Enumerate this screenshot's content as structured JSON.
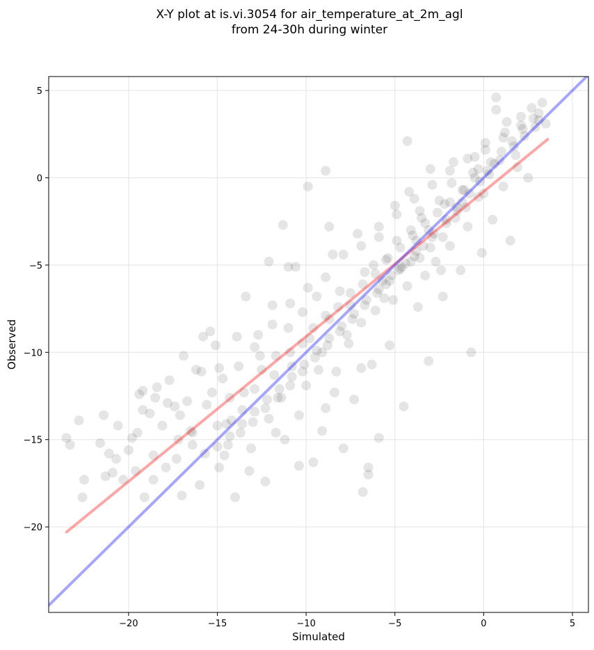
{
  "chart_data": {
    "type": "scatter",
    "title": "X-Y plot at is.vi.3054 for air_temperature_at_2m_agl",
    "subtitle": "from 24-30h during winter",
    "xlabel": "Simulated",
    "ylabel": "Observed",
    "xlim": [
      -24.5,
      5.9
    ],
    "ylim": [
      -24.9,
      5.8
    ],
    "xticks": [
      -20,
      -15,
      -10,
      -5,
      0,
      5
    ],
    "yticks": [
      -20,
      -15,
      -10,
      -5,
      0,
      5
    ],
    "xtick_labels": [
      "−20",
      "−15",
      "−10",
      "−5",
      "0",
      "5"
    ],
    "ytick_labels": [
      "−20",
      "−15",
      "−10",
      "−5",
      "0",
      "5"
    ],
    "grid": true,
    "point_color": "#000000",
    "point_alpha": 0.1,
    "series": [
      {
        "values": [
          [
            -23.5,
            -14.9
          ],
          [
            -23.3,
            -15.3
          ],
          [
            -22.8,
            -13.9
          ],
          [
            -22.5,
            -17.3
          ],
          [
            -22.6,
            -18.3
          ],
          [
            -21.6,
            -15.2
          ],
          [
            -21.4,
            -13.6
          ],
          [
            -21.3,
            -17.1
          ],
          [
            -21.1,
            -15.8
          ],
          [
            -20.9,
            -16.9
          ],
          [
            -20.6,
            -14.2
          ],
          [
            -20.3,
            -17.3
          ],
          [
            -20.0,
            -15.6
          ],
          [
            -19.8,
            -14.9
          ],
          [
            -19.6,
            -16.8
          ],
          [
            -19.4,
            -12.4
          ],
          [
            -19.2,
            -12.2
          ],
          [
            -19.1,
            -18.3
          ],
          [
            -18.8,
            -13.5
          ],
          [
            -18.6,
            -15.9
          ],
          [
            -18.4,
            -12.0
          ],
          [
            -18.1,
            -14.2
          ],
          [
            -17.9,
            -16.6
          ],
          [
            -17.7,
            -11.6
          ],
          [
            -17.4,
            -13.1
          ],
          [
            -17.2,
            -15.0
          ],
          [
            -17.0,
            -18.2
          ],
          [
            -16.7,
            -12.8
          ],
          [
            -16.5,
            -14.5
          ],
          [
            -16.2,
            -11.0
          ],
          [
            -16.0,
            -17.6
          ],
          [
            -15.8,
            -9.1
          ],
          [
            -15.6,
            -13.0
          ],
          [
            -15.3,
            -12.3
          ],
          [
            -15.1,
            -9.6
          ],
          [
            -14.9,
            -16.6
          ],
          [
            -14.7,
            -11.5
          ],
          [
            -14.5,
            -14.1
          ],
          [
            -14.3,
            -12.6
          ],
          [
            -14.0,
            -18.3
          ],
          [
            -13.8,
            -10.8
          ],
          [
            -13.6,
            -13.3
          ],
          [
            -13.4,
            -6.8
          ],
          [
            -13.1,
            -15.5
          ],
          [
            -12.9,
            -12.1
          ],
          [
            -12.7,
            -9.0
          ],
          [
            -12.5,
            -11.0
          ],
          [
            -12.3,
            -17.4
          ],
          [
            -12.1,
            -13.8
          ],
          [
            -11.9,
            -7.3
          ],
          [
            -11.7,
            -10.2
          ],
          [
            -11.4,
            -12.6
          ],
          [
            -11.2,
            -15.0
          ],
          [
            -11.0,
            -8.6
          ],
          [
            -10.8,
            -10.8
          ],
          [
            -10.6,
            -5.1
          ],
          [
            -10.4,
            -13.6
          ],
          [
            -10.2,
            -7.7
          ],
          [
            -10.0,
            -11.9
          ],
          [
            -9.8,
            -9.2
          ],
          [
            -9.6,
            -16.3
          ],
          [
            -9.4,
            -6.8
          ],
          [
            -9.1,
            -10.0
          ],
          [
            -8.9,
            -13.2
          ],
          [
            -8.7,
            -8.1
          ],
          [
            -8.5,
            -4.4
          ],
          [
            -8.3,
            -11.1
          ],
          [
            -8.1,
            -6.5
          ],
          [
            -7.9,
            -15.5
          ],
          [
            -7.7,
            -9.0
          ],
          [
            -7.5,
            -7.3
          ],
          [
            -7.3,
            -12.7
          ],
          [
            -7.1,
            -3.2
          ],
          [
            -6.9,
            -8.3
          ],
          [
            -6.7,
            -5.4
          ],
          [
            -6.5,
            -16.6
          ],
          [
            -6.3,
            -10.7
          ],
          [
            -6.1,
            -7.6
          ],
          [
            -5.9,
            -2.8
          ],
          [
            -5.7,
            -5.9
          ],
          [
            -5.5,
            -4.7
          ],
          [
            -5.3,
            -9.6
          ],
          [
            -5.1,
            -7.0
          ],
          [
            -4.9,
            -3.6
          ],
          [
            -4.7,
            -5.2
          ],
          [
            -4.5,
            -13.1
          ],
          [
            -4.3,
            -6.2
          ],
          [
            -4.1,
            -3.0
          ],
          [
            -3.9,
            -4.5
          ],
          [
            -3.7,
            -7.4
          ],
          [
            -3.5,
            -2.3
          ],
          [
            -3.3,
            -5.6
          ],
          [
            -3.1,
            -10.5
          ],
          [
            -2.9,
            -3.4
          ],
          [
            -2.7,
            -4.8
          ],
          [
            -2.5,
            -1.3
          ],
          [
            -2.3,
            -6.8
          ],
          [
            -2.1,
            -2.6
          ],
          [
            -1.9,
            -3.9
          ],
          [
            -1.7,
            0.9
          ],
          [
            -1.5,
            -1.9
          ],
          [
            -1.3,
            -5.3
          ],
          [
            -1.1,
            -0.7
          ],
          [
            -0.9,
            -2.8
          ],
          [
            -0.7,
            -10.0
          ],
          [
            -0.5,
            1.2
          ],
          [
            -0.3,
            -1.1
          ],
          [
            -0.1,
            -4.3
          ],
          [
            0.1,
            2.0
          ],
          [
            0.3,
            0.2
          ],
          [
            0.5,
            -2.4
          ],
          [
            0.7,
            3.9
          ],
          [
            0.9,
            1.0
          ],
          [
            1.1,
            -0.5
          ],
          [
            1.3,
            3.2
          ],
          [
            1.5,
            -3.6
          ],
          [
            1.7,
            1.8
          ],
          [
            1.9,
            0.6
          ],
          [
            2.1,
            3.5
          ],
          [
            2.3,
            2.4
          ],
          [
            2.5,
            0.0
          ],
          [
            2.7,
            4.0
          ],
          [
            2.9,
            2.9
          ],
          [
            3.1,
            3.7
          ],
          [
            3.3,
            4.3
          ],
          [
            3.5,
            3.1
          ],
          [
            0.7,
            4.6
          ],
          [
            -5.9,
            -14.9
          ],
          [
            -6.5,
            -17.0
          ],
          [
            -6.8,
            -18.0
          ],
          [
            -9.1,
            -14.5
          ],
          [
            -11.0,
            -5.1
          ],
          [
            -8.7,
            -2.8
          ],
          [
            -12.1,
            -4.8
          ],
          [
            -15.4,
            -8.8
          ],
          [
            -17.3,
            -16.1
          ],
          [
            -18.6,
            -17.3
          ],
          [
            -19.5,
            -14.6
          ],
          [
            -20.7,
            -16.1
          ],
          [
            -16.4,
            -15.3
          ],
          [
            -14.6,
            -15.9
          ],
          [
            -13.2,
            -16.8
          ],
          [
            -11.7,
            -14.6
          ],
          [
            -10.4,
            -16.5
          ],
          [
            -9.3,
            -11.0
          ],
          [
            -8.4,
            -12.3
          ],
          [
            -7.6,
            -9.5
          ],
          [
            -6.9,
            -10.9
          ],
          [
            -6.2,
            -5.0
          ],
          [
            -5.6,
            -6.9
          ],
          [
            -5.0,
            -1.6
          ],
          [
            -4.2,
            -0.8
          ],
          [
            -3.6,
            -1.9
          ],
          [
            -3.0,
            0.5
          ],
          [
            -2.4,
            -5.3
          ],
          [
            -1.8,
            -0.3
          ],
          [
            -1.2,
            -1.4
          ],
          [
            -0.6,
            0.3
          ],
          [
            0.0,
            -0.9
          ],
          [
            0.6,
            0.8
          ],
          [
            1.2,
            2.6
          ],
          [
            1.8,
            1.3
          ],
          [
            -8.9,
            0.4
          ],
          [
            -9.9,
            -0.5
          ],
          [
            -11.3,
            -2.7
          ],
          [
            -4.3,
            2.1
          ],
          [
            -13.5,
            -12.3
          ],
          [
            -14.2,
            -13.9
          ],
          [
            -15.0,
            -14.2
          ],
          [
            -12.6,
            -10.2
          ],
          [
            -11.8,
            -11.3
          ],
          [
            -10.9,
            -10.0
          ],
          [
            -10.2,
            -9.5
          ],
          [
            -9.6,
            -8.6
          ],
          [
            -8.9,
            -7.9
          ],
          [
            -8.2,
            -7.4
          ],
          [
            -7.5,
            -6.6
          ],
          [
            -6.8,
            -6.1
          ],
          [
            -6.1,
            -5.5
          ],
          [
            -5.4,
            -4.6
          ],
          [
            -4.7,
            -4.0
          ],
          [
            -4.0,
            -3.3
          ],
          [
            -3.3,
            -2.6
          ],
          [
            -2.6,
            -2.0
          ],
          [
            -1.9,
            -1.4
          ],
          [
            -1.2,
            -0.7
          ],
          [
            -0.5,
            0.0
          ],
          [
            0.2,
            0.4
          ],
          [
            -2.2,
            -1.5
          ],
          [
            -3.1,
            -3.0
          ],
          [
            -3.8,
            -3.6
          ],
          [
            -4.4,
            -4.9
          ],
          [
            -5.2,
            -5.6
          ],
          [
            -5.9,
            -6.4
          ],
          [
            -6.6,
            -7.0
          ],
          [
            -7.3,
            -7.8
          ],
          [
            -8.0,
            -8.5
          ],
          [
            -8.7,
            -9.2
          ],
          [
            -9.4,
            -9.9
          ],
          [
            -10.1,
            -10.7
          ],
          [
            -10.8,
            -11.4
          ],
          [
            -11.5,
            -12.1
          ],
          [
            -12.2,
            -12.7
          ],
          [
            -12.9,
            -13.4
          ],
          [
            -13.6,
            -14.1
          ],
          [
            -14.3,
            -14.8
          ],
          [
            -15.0,
            -15.4
          ],
          [
            -15.7,
            -15.8
          ],
          [
            -16.4,
            -14.6
          ],
          [
            -17.1,
            -13.6
          ],
          [
            -17.8,
            -12.9
          ],
          [
            -18.5,
            -12.6
          ],
          [
            -19.2,
            -13.3
          ],
          [
            -16.9,
            -10.2
          ],
          [
            -15.9,
            -11.1
          ],
          [
            -14.9,
            -10.9
          ],
          [
            -13.9,
            -9.1
          ],
          [
            -12.9,
            -9.7
          ],
          [
            -11.9,
            -8.4
          ],
          [
            -10.9,
            -7.2
          ],
          [
            -9.9,
            -6.3
          ],
          [
            -8.9,
            -5.7
          ],
          [
            -7.9,
            -4.4
          ],
          [
            -6.9,
            -3.9
          ],
          [
            -5.9,
            -3.4
          ],
          [
            -4.9,
            -2.1
          ],
          [
            -3.9,
            -1.2
          ],
          [
            -2.9,
            -0.4
          ],
          [
            -1.9,
            0.4
          ],
          [
            -0.9,
            1.1
          ],
          [
            0.1,
            1.6
          ],
          [
            1.1,
            2.3
          ],
          [
            2.1,
            3.0
          ],
          [
            3.1,
            3.3
          ],
          [
            -3.4,
            -3.9
          ],
          [
            -2.8,
            -3.2
          ],
          [
            -2.1,
            -2.4
          ],
          [
            -1.5,
            -1.7
          ],
          [
            -0.8,
            -0.9
          ],
          [
            -0.2,
            -0.2
          ],
          [
            -3.8,
            -4.2
          ],
          [
            -4.6,
            -5.1
          ],
          [
            -5.3,
            -5.9
          ],
          [
            -6.0,
            -6.6
          ],
          [
            -6.7,
            -7.3
          ],
          [
            -7.4,
            -8.1
          ],
          [
            -8.1,
            -8.8
          ],
          [
            -8.8,
            -9.6
          ],
          [
            -9.5,
            -10.3
          ],
          [
            -10.2,
            -11.1
          ],
          [
            -10.9,
            -11.9
          ],
          [
            -11.6,
            -12.6
          ],
          [
            -12.3,
            -13.2
          ],
          [
            -13.0,
            -14.0
          ],
          [
            -13.7,
            -14.6
          ],
          [
            -14.4,
            -15.3
          ],
          [
            -1.0,
            -1.7
          ],
          [
            -1.6,
            -2.3
          ],
          [
            -2.3,
            -3.4
          ],
          [
            -3.0,
            -4.0
          ],
          [
            -3.6,
            -4.6
          ],
          [
            -4.1,
            -4.8
          ],
          [
            -4.8,
            -5.3
          ],
          [
            -5.5,
            -6.1
          ],
          [
            -0.3,
            0.5
          ],
          [
            0.4,
            0.9
          ],
          [
            1.0,
            1.5
          ],
          [
            1.6,
            2.1
          ],
          [
            2.2,
            2.8
          ],
          [
            2.8,
            3.4
          ]
        ]
      }
    ],
    "lines": [
      {
        "name": "",
        "color": "#ff0000",
        "alpha": 0.35,
        "x": [
          -23.5,
          3.6
        ],
        "y": [
          -20.3,
          2.2
        ]
      },
      {
        "name": "",
        "color": "#0000ff",
        "alpha": 0.35,
        "x": [
          -24.5,
          5.9
        ],
        "y": [
          -24.5,
          5.9
        ]
      }
    ]
  }
}
